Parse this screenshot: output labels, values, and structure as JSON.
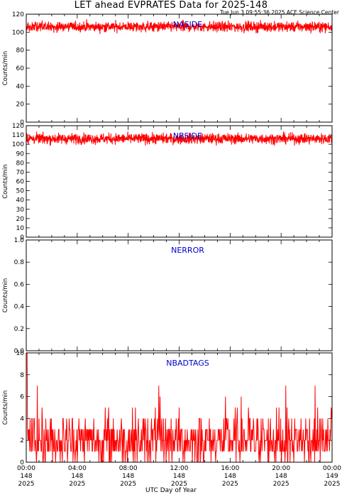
{
  "title": "LET ahead EVPRATES Data for 2025-148",
  "timestamp": "Tue Jun  3 09:55:36 2025 ACE Science Center",
  "xlabel": "UTC Day of Year",
  "chart_data": [
    {
      "type": "line",
      "series": [
        {
          "name": "NASIDE",
          "color": "#ff0000",
          "typical_range": [
            95,
            120
          ]
        }
      ],
      "title": "NASIDE",
      "ylabel": "Counts/min",
      "ylim": [
        0,
        120
      ],
      "yticks": [
        "0",
        "20",
        "40",
        "60",
        "80",
        "100",
        "120"
      ],
      "x_range_hours": [
        0,
        24
      ]
    },
    {
      "type": "line",
      "series": [
        {
          "name": "NBSIDE",
          "color": "#ff0000",
          "typical_range": [
            95,
            120
          ]
        }
      ],
      "title": "NBSIDE",
      "ylabel": "Counts/min",
      "ylim": [
        0,
        120
      ],
      "yticks": [
        "0",
        "10",
        "20",
        "30",
        "40",
        "50",
        "60",
        "70",
        "80",
        "90",
        "100",
        "110",
        "120"
      ],
      "x_range_hours": [
        0,
        24
      ]
    },
    {
      "type": "line",
      "series": [
        {
          "name": "NERROR",
          "color": "#ff0000"
        }
      ],
      "title": "NERROR",
      "ylabel": "Counts/min",
      "ylim": [
        0,
        1
      ],
      "yticks": [
        "0.0",
        "0.2",
        "0.4",
        "0.6",
        "0.8",
        "1.0"
      ],
      "x_range_hours": [
        0,
        24
      ]
    },
    {
      "type": "line",
      "series": [
        {
          "name": "NBADTAGS",
          "color": "#ff0000",
          "typical_range": [
            0,
            7
          ]
        }
      ],
      "title": "NBADTAGS",
      "ylabel": "Counts/min",
      "ylim": [
        0,
        10
      ],
      "yticks": [
        "0",
        "2",
        "4",
        "6",
        "8",
        "10"
      ],
      "x_range_hours": [
        0,
        24
      ]
    }
  ],
  "x_ticks": [
    {
      "time": "00:00",
      "doy": "148",
      "year": "2025"
    },
    {
      "time": "04:00",
      "doy": "148",
      "year": "2025"
    },
    {
      "time": "08:00",
      "doy": "148",
      "year": "2025"
    },
    {
      "time": "12:00",
      "doy": "148",
      "year": "2025"
    },
    {
      "time": "16:00",
      "doy": "148",
      "year": "2025"
    },
    {
      "time": "20:00",
      "doy": "148",
      "year": "2025"
    },
    {
      "time": "00:00",
      "doy": "149",
      "year": "2025"
    }
  ]
}
